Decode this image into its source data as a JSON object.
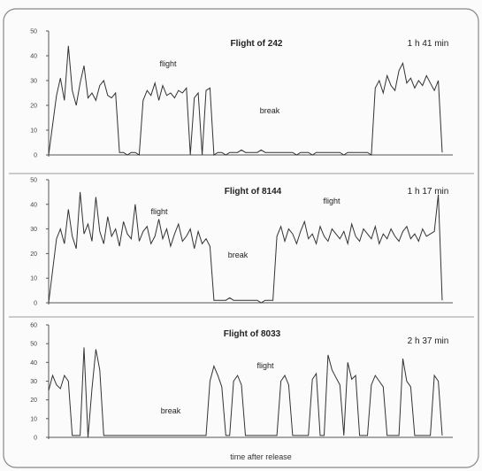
{
  "chart_data": [
    {
      "type": "line",
      "title": "Flight of 242",
      "duration_label": "1 h 41 min",
      "ylim": [
        0,
        50
      ],
      "yticks": [
        "0",
        "10",
        "20",
        "30",
        "40",
        "50"
      ],
      "annotations": [
        "flight",
        "break"
      ],
      "x": [
        0,
        2,
        3,
        4,
        5,
        6,
        7,
        8,
        9,
        10,
        11,
        12,
        13,
        14,
        15,
        16,
        17,
        18,
        19,
        20,
        21,
        22,
        23,
        24,
        25,
        26,
        27,
        28,
        29,
        30,
        31,
        32,
        33,
        34,
        35,
        36,
        37,
        38,
        39,
        40,
        41,
        42,
        43,
        44,
        45,
        46,
        47,
        48,
        49,
        50,
        51,
        52,
        53,
        54,
        55,
        56,
        57,
        58,
        59,
        60,
        61,
        62,
        63,
        64,
        65,
        66,
        67,
        68,
        69,
        70,
        71,
        72,
        73,
        74,
        75,
        76,
        77,
        78,
        79,
        80,
        81,
        82,
        83,
        84,
        85,
        86,
        87,
        88,
        89,
        90,
        91,
        92,
        93,
        94,
        95,
        96,
        97,
        98,
        99,
        100
      ],
      "values": [
        0,
        24,
        31,
        22,
        44,
        26,
        20,
        29,
        36,
        23,
        25,
        22,
        28,
        30,
        24,
        23,
        25,
        1,
        1,
        0,
        1,
        1,
        0,
        22,
        26,
        24,
        29,
        22,
        28,
        24,
        25,
        23,
        26,
        25,
        27,
        0,
        23,
        25,
        0,
        26,
        27,
        0,
        1,
        1,
        0,
        1,
        1,
        1,
        2,
        1,
        1,
        1,
        1,
        2,
        1,
        1,
        1,
        1,
        1,
        1,
        1,
        1,
        0,
        1,
        1,
        1,
        0,
        1,
        1,
        1,
        1,
        1,
        1,
        1,
        0,
        1,
        1,
        1,
        1,
        1,
        1,
        0,
        27,
        30,
        25,
        32,
        28,
        26,
        34,
        37,
        29,
        31,
        27,
        30,
        28,
        32,
        29,
        26,
        30,
        1
      ]
    },
    {
      "type": "line",
      "title": "Flight of 8144",
      "duration_label": "1 h 17 min",
      "ylim": [
        0,
        50
      ],
      "yticks": [
        "0",
        "10",
        "20",
        "30",
        "40",
        "50"
      ],
      "annotations": [
        "flight",
        "flight",
        "break"
      ],
      "x": [
        0,
        2,
        3,
        4,
        5,
        6,
        7,
        8,
        9,
        10,
        11,
        12,
        13,
        14,
        15,
        16,
        17,
        18,
        19,
        20,
        21,
        22,
        23,
        24,
        25,
        26,
        27,
        28,
        29,
        30,
        31,
        32,
        33,
        34,
        35,
        36,
        37,
        38,
        39,
        40,
        41,
        42,
        43,
        44,
        45,
        46,
        47,
        48,
        49,
        50,
        51,
        52,
        53,
        54,
        55,
        56,
        57,
        58,
        59,
        60,
        61,
        62,
        63,
        64,
        65,
        66,
        67,
        68,
        69,
        70,
        71,
        72,
        73,
        74,
        75,
        76,
        77,
        78,
        79,
        80,
        81,
        82,
        83,
        84,
        85,
        86,
        87,
        88,
        89,
        90,
        91,
        92,
        93,
        94,
        95,
        96,
        97,
        98,
        99,
        100
      ],
      "values": [
        0,
        26,
        30,
        24,
        38,
        27,
        22,
        45,
        28,
        32,
        25,
        43,
        29,
        24,
        35,
        27,
        30,
        23,
        33,
        28,
        26,
        40,
        25,
        29,
        31,
        24,
        27,
        34,
        26,
        30,
        23,
        28,
        32,
        25,
        27,
        30,
        22,
        29,
        24,
        26,
        23,
        1,
        1,
        1,
        1,
        2,
        1,
        1,
        1,
        1,
        1,
        1,
        1,
        0,
        1,
        1,
        1,
        27,
        31,
        25,
        30,
        28,
        24,
        29,
        33,
        26,
        28,
        24,
        31,
        27,
        25,
        30,
        28,
        26,
        29,
        24,
        32,
        27,
        25,
        30,
        28,
        26,
        31,
        24,
        28,
        26,
        30,
        27,
        25,
        29,
        31,
        26,
        28,
        25,
        30,
        27,
        28,
        29,
        44,
        1
      ]
    },
    {
      "type": "line",
      "title": "Flight of 8033",
      "duration_label": "2 h 37 min",
      "ylim": [
        0,
        60
      ],
      "yticks": [
        "0",
        "10",
        "20",
        "30",
        "40",
        "50",
        "60"
      ],
      "xlabel": "time after release",
      "annotations": [
        "flight",
        "break"
      ],
      "x": [
        0,
        1,
        2,
        3,
        4,
        5,
        6,
        7,
        8,
        9,
        10,
        11,
        12,
        13,
        14,
        15,
        16,
        17,
        18,
        19,
        20,
        21,
        22,
        23,
        24,
        25,
        26,
        27,
        28,
        29,
        30,
        31,
        32,
        33,
        34,
        35,
        36,
        37,
        38,
        39,
        40,
        41,
        42,
        43,
        44,
        45,
        46,
        47,
        48,
        49,
        50,
        51,
        52,
        53,
        54,
        55,
        56,
        57,
        58,
        59,
        60,
        61,
        62,
        63,
        64,
        65,
        66,
        67,
        68,
        69,
        70,
        71,
        72,
        73,
        74,
        75,
        76,
        77,
        78,
        79,
        80,
        81,
        82,
        83,
        84,
        85,
        86,
        87,
        88,
        89,
        90,
        91,
        92,
        93,
        94,
        95,
        96,
        97,
        98,
        99,
        100
      ],
      "values": [
        25,
        33,
        28,
        26,
        33,
        30,
        1,
        1,
        1,
        48,
        0,
        26,
        47,
        36,
        1,
        1,
        1,
        1,
        1,
        1,
        1,
        1,
        1,
        1,
        1,
        1,
        1,
        1,
        1,
        1,
        1,
        1,
        1,
        1,
        1,
        1,
        1,
        1,
        1,
        1,
        1,
        30,
        38,
        33,
        27,
        1,
        1,
        30,
        33,
        28,
        1,
        1,
        1,
        1,
        1,
        1,
        1,
        1,
        1,
        30,
        33,
        28,
        1,
        1,
        1,
        1,
        1,
        31,
        34,
        1,
        1,
        44,
        36,
        32,
        28,
        1,
        40,
        31,
        33,
        1,
        1,
        1,
        28,
        33,
        30,
        27,
        1,
        1,
        1,
        1,
        42,
        30,
        27,
        1,
        1,
        1,
        1,
        1,
        33,
        30,
        1
      ]
    }
  ]
}
